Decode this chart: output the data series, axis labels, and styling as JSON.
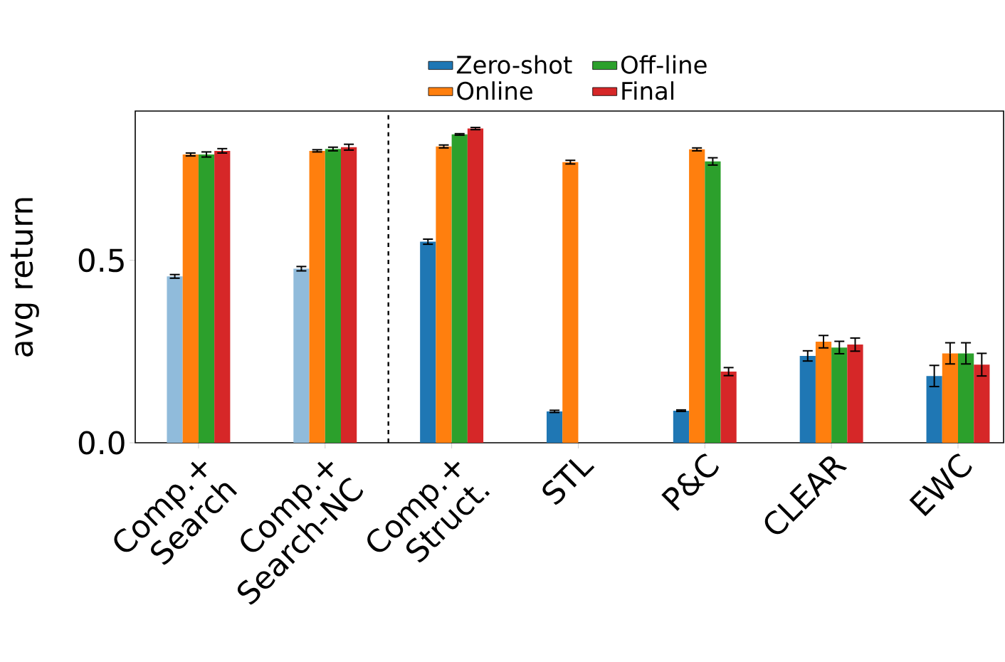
{
  "chart_data": {
    "type": "bar",
    "ylabel": "avg return",
    "categories": [
      "Comp.+ Search",
      "Comp.+ Search-NC",
      "Comp.+ Struct.",
      "STL",
      "P&C",
      "CLEAR",
      "EWC"
    ],
    "series": [
      {
        "name": "Zero-shot",
        "color": "#1f77b4",
        "colors": [
          "#90bbdb",
          "#90bbdb",
          "#1f77b4",
          "#1f77b4",
          "#1f77b4",
          "#1f77b4",
          "#1f77b4"
        ],
        "values": [
          0.456,
          0.477,
          0.551,
          0.086,
          0.088,
          0.238,
          0.183
        ],
        "errors": [
          0.005,
          0.006,
          0.007,
          0.003,
          0.002,
          0.014,
          0.029
        ]
      },
      {
        "name": "Online",
        "color": "#ff7f0e",
        "values": [
          0.79,
          0.8,
          0.812,
          0.769,
          0.804,
          0.277,
          0.245
        ],
        "errors": [
          0.004,
          0.003,
          0.004,
          0.005,
          0.004,
          0.017,
          0.029
        ]
      },
      {
        "name": "Off-line",
        "color": "#2ca02c",
        "values": [
          0.79,
          0.805,
          0.845,
          0,
          0.771,
          0.261,
          0.245
        ],
        "errors": [
          0.007,
          0.005,
          0.002,
          null,
          0.01,
          0.017,
          0.029
        ]
      },
      {
        "name": "Final",
        "color": "#d62728",
        "values": [
          0.8,
          0.81,
          0.861,
          0,
          0.195,
          0.269,
          0.214
        ],
        "errors": [
          0.006,
          0.008,
          0.003,
          null,
          0.011,
          0.018,
          0.031
        ]
      }
    ],
    "ylim": [
      0,
      0.909
    ],
    "yticks": [
      {
        "value": 0,
        "label": "0.0"
      },
      {
        "value": 0.5,
        "label": "0.5"
      }
    ],
    "legend": "top",
    "grid": false
  }
}
